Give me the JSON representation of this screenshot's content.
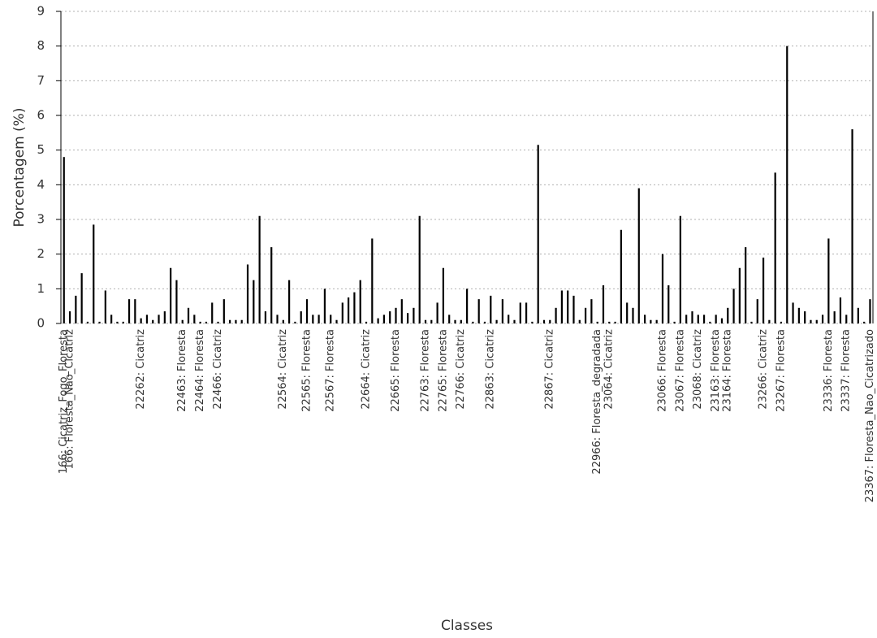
{
  "chart_data": {
    "type": "bar",
    "y_label": "Porcentagem (%)",
    "x_label": "Classes",
    "color": "#000000",
    "grid": true,
    "ylim": [
      0,
      9
    ],
    "yticks": [
      0,
      1,
      2,
      3,
      4,
      5,
      6,
      7,
      8,
      9
    ],
    "categories": [
      "166: Cicatriz_Fogo_Floresta",
      "166: Floresta_Nao_Cicatriz",
      null,
      null,
      null,
      null,
      null,
      null,
      null,
      null,
      null,
      null,
      null,
      "22262: Cicatriz",
      null,
      null,
      null,
      null,
      null,
      null,
      "22463: Floresta",
      null,
      null,
      "22464: Floresta",
      null,
      null,
      "22466: Cicatriz",
      null,
      null,
      null,
      null,
      null,
      null,
      null,
      null,
      null,
      null,
      "22564: Cicatriz",
      null,
      null,
      null,
      "22565: Floresta",
      null,
      null,
      null,
      "22567: Floresta",
      null,
      null,
      null,
      null,
      null,
      "22664: Cicatriz",
      null,
      null,
      null,
      null,
      "22665: Floresta",
      null,
      null,
      null,
      null,
      "22763: Floresta",
      null,
      null,
      "22765: Floresta",
      null,
      null,
      "22766: Cicatriz",
      null,
      null,
      null,
      null,
      "22863: Cicatriz",
      null,
      null,
      null,
      null,
      null,
      null,
      null,
      null,
      null,
      "22867: Cicatriz",
      null,
      null,
      null,
      null,
      null,
      null,
      null,
      "22966: Floresta_degradada",
      null,
      "23064: Cicatriz",
      null,
      null,
      null,
      null,
      null,
      null,
      null,
      null,
      "23066: Floresta",
      null,
      null,
      "23067: Floresta",
      null,
      null,
      "23068: Cicatriz",
      null,
      null,
      "23163: Floresta",
      null,
      "23164: Floresta",
      null,
      null,
      null,
      null,
      null,
      "23266: Cicatriz",
      null,
      null,
      "23267: Floresta",
      null,
      null,
      null,
      null,
      null,
      null,
      null,
      "23336: Floresta",
      null,
      null,
      "23337: Floresta",
      null,
      null,
      null,
      "23367: Floresta_Nao_Cicatrizado"
    ],
    "values": [
      4.8,
      0.35,
      0.8,
      1.45,
      0.05,
      2.85,
      0.05,
      0.95,
      0.25,
      0.05,
      0.05,
      0.7,
      0.7,
      0.15,
      0.25,
      0.1,
      0.25,
      0.35,
      1.6,
      1.25,
      0.1,
      0.45,
      0.25,
      0.05,
      0.05,
      0.6,
      0.05,
      0.7,
      0.1,
      0.1,
      0.1,
      1.7,
      1.25,
      3.1,
      0.35,
      2.2,
      0.25,
      0.1,
      1.25,
      0.05,
      0.35,
      0.7,
      0.25,
      0.25,
      1.0,
      0.25,
      0.1,
      0.6,
      0.75,
      0.9,
      1.25,
      0.05,
      2.45,
      0.15,
      0.25,
      0.35,
      0.45,
      0.7,
      0.3,
      0.45,
      3.1,
      0.1,
      0.1,
      0.6,
      1.6,
      0.25,
      0.1,
      0.1,
      1.0,
      0.05,
      0.7,
      0.05,
      0.8,
      0.1,
      0.7,
      0.25,
      0.1,
      0.6,
      0.6,
      0.05,
      5.15,
      0.1,
      0.1,
      0.45,
      0.95,
      0.95,
      0.8,
      0.1,
      0.45,
      0.7,
      0.05,
      1.1,
      0.05,
      0.05,
      2.7,
      0.6,
      0.45,
      3.9,
      0.25,
      0.1,
      0.1,
      2.0,
      1.1,
      0.05,
      3.1,
      0.25,
      0.35,
      0.25,
      0.25,
      0.05,
      0.25,
      0.15,
      0.45,
      1.0,
      1.6,
      2.2,
      0.05,
      0.7,
      1.9,
      0.1,
      4.35,
      0.05,
      8.0,
      0.6,
      0.45,
      0.35,
      0.1,
      0.1,
      0.25,
      2.45,
      0.35,
      0.75,
      0.25,
      5.6,
      0.45,
      0.05,
      0.7
    ]
  }
}
